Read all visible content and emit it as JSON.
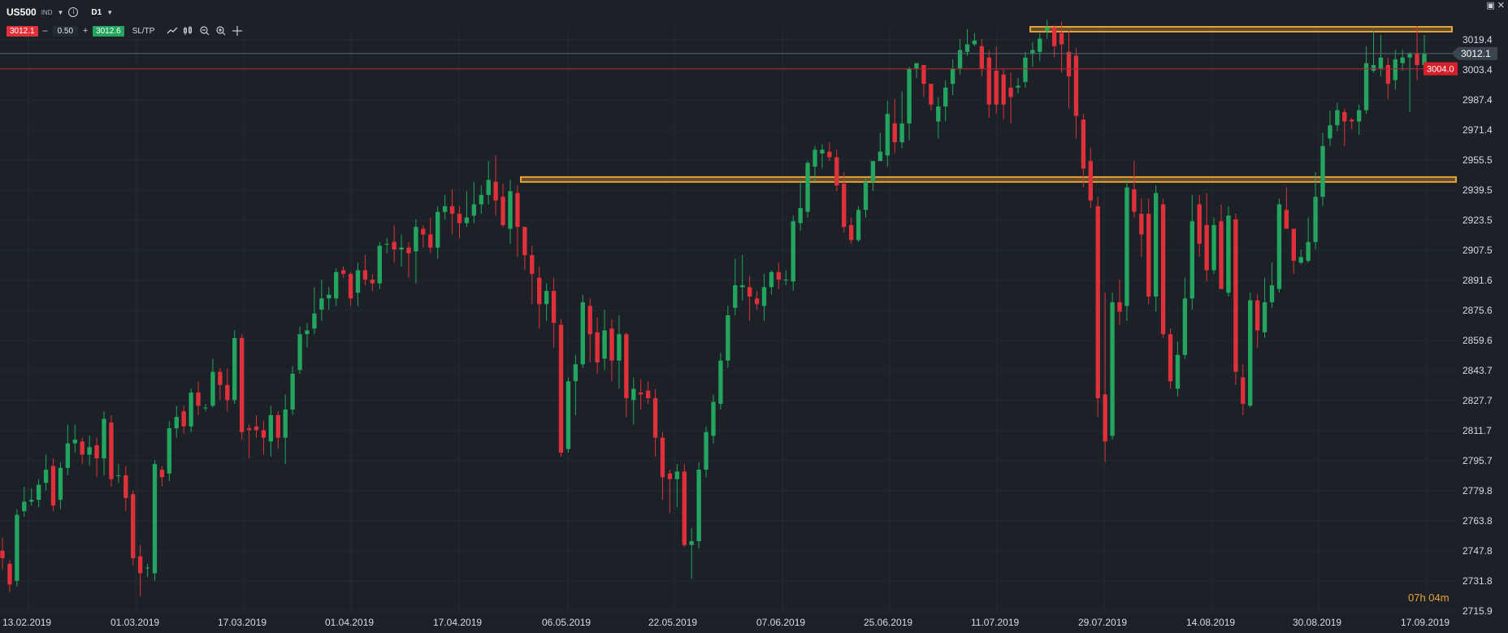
{
  "header": {
    "symbol": "US500",
    "symbol_tag": "IND",
    "timeframe": "D1",
    "sell_price": "3012.1",
    "lot_size": "0.50",
    "buy_price": "3012.6",
    "sltp_label": "SL/TP",
    "minus": "–",
    "plus": "+",
    "info": "i",
    "caret": "▼"
  },
  "window_controls": {
    "restore": "▣",
    "close": "✕"
  },
  "timer": "07h 04m",
  "chart_data": {
    "type": "candlestick",
    "ylim": [
      2715.9,
      3027.0
    ],
    "y_ticks": [
      "3019.4",
      "3003.4",
      "2987.4",
      "2971.4",
      "2955.5",
      "2939.5",
      "2923.5",
      "2907.5",
      "2891.6",
      "2875.6",
      "2859.6",
      "2843.7",
      "2827.7",
      "2811.7",
      "2795.7",
      "2779.8",
      "2763.8",
      "2747.8",
      "2731.8",
      "2715.9"
    ],
    "x_ticks": [
      "13.02.2019",
      "01.03.2019",
      "17.03.2019",
      "01.04.2019",
      "17.04.2019",
      "06.05.2019",
      "22.05.2019",
      "07.06.2019",
      "25.06.2019",
      "11.07.2019",
      "29.07.2019",
      "14.08.2019",
      "30.08.2019",
      "17.09.2019"
    ],
    "current_price": "3012.1",
    "marked_price": "3004.0",
    "resistance_levels": [
      3025.0,
      2945.2
    ],
    "colors": {
      "background": "#1b2127",
      "up": "#23a55f",
      "down": "#e0303a",
      "level": "#e8a23a",
      "grid": "#232b32",
      "text": "#d5dbe0"
    },
    "candles": [
      [
        2748,
        2744,
        2755,
        2738
      ],
      [
        2741,
        2730,
        2743,
        2726
      ],
      [
        2732,
        2767,
        2770,
        2729
      ],
      [
        2769,
        2774,
        2782,
        2766
      ],
      [
        2774,
        2775,
        2781,
        2772
      ],
      [
        2775,
        2783,
        2786,
        2771
      ],
      [
        2784,
        2791,
        2799,
        2780
      ],
      [
        2793,
        2772,
        2797,
        2769
      ],
      [
        2775,
        2792,
        2795,
        2770
      ],
      [
        2792,
        2805,
        2815,
        2788
      ],
      [
        2805,
        2807,
        2815,
        2800
      ],
      [
        2806,
        2799,
        2808,
        2794
      ],
      [
        2799,
        2803,
        2809,
        2793
      ],
      [
        2804,
        2797,
        2808,
        2787
      ],
      [
        2797,
        2818,
        2822,
        2788
      ],
      [
        2816,
        2786,
        2820,
        2782
      ],
      [
        2788,
        2788,
        2794,
        2784
      ],
      [
        2788,
        2776,
        2793,
        2769
      ],
      [
        2778,
        2744,
        2780,
        2740
      ],
      [
        2745,
        2736,
        2751,
        2724
      ],
      [
        2739,
        2739,
        2741,
        2734
      ],
      [
        2736,
        2794,
        2796,
        2732
      ],
      [
        2791,
        2787,
        2793,
        2782
      ],
      [
        2789,
        2813,
        2817,
        2785
      ],
      [
        2813,
        2819,
        2825,
        2808
      ],
      [
        2822,
        2814,
        2825,
        2810
      ],
      [
        2814,
        2832,
        2834,
        2811
      ],
      [
        2832,
        2825,
        2838,
        2820
      ],
      [
        2824,
        2824,
        2826,
        2822
      ],
      [
        2825,
        2843,
        2850,
        2824
      ],
      [
        2843,
        2836,
        2845,
        2828
      ],
      [
        2836,
        2828,
        2845,
        2822
      ],
      [
        2828,
        2861,
        2865,
        2826
      ],
      [
        2861,
        2811,
        2863,
        2807
      ],
      [
        2813,
        2812,
        2815,
        2797
      ],
      [
        2814,
        2812,
        2820,
        2808
      ],
      [
        2812,
        2808,
        2817,
        2799
      ],
      [
        2806,
        2820,
        2825,
        2798
      ],
      [
        2820,
        2808,
        2822,
        2802
      ],
      [
        2808,
        2823,
        2831,
        2794
      ],
      [
        2823,
        2842,
        2846,
        2820
      ],
      [
        2844,
        2863,
        2867,
        2842
      ],
      [
        2863,
        2865,
        2869,
        2856
      ],
      [
        2866,
        2874,
        2888,
        2863
      ],
      [
        2876,
        2882,
        2892,
        2870
      ],
      [
        2882,
        2884,
        2888,
        2876
      ],
      [
        2882,
        2896,
        2898,
        2878
      ],
      [
        2897,
        2895,
        2899,
        2893
      ],
      [
        2895,
        2882,
        2896,
        2878
      ],
      [
        2885,
        2897,
        2901,
        2878
      ],
      [
        2897,
        2892,
        2905,
        2889
      ],
      [
        2892,
        2890,
        2895,
        2886
      ],
      [
        2890,
        2910,
        2912,
        2887
      ],
      [
        2911,
        2911,
        2914,
        2906
      ],
      [
        2912,
        2908,
        2921,
        2901
      ],
      [
        2908,
        2909,
        2916,
        2899
      ],
      [
        2909,
        2906,
        2912,
        2893
      ],
      [
        2907,
        2920,
        2924,
        2890
      ],
      [
        2919,
        2916,
        2921,
        2909
      ],
      [
        2916,
        2909,
        2925,
        2906
      ],
      [
        2909,
        2928,
        2931,
        2903
      ],
      [
        2928,
        2931,
        2937,
        2924
      ],
      [
        2931,
        2927,
        2940,
        2916
      ],
      [
        2927,
        2922,
        2931,
        2914
      ],
      [
        2922,
        2925,
        2939,
        2920
      ],
      [
        2926,
        2932,
        2944,
        2922
      ],
      [
        2932,
        2937,
        2942,
        2927
      ],
      [
        2937,
        2945,
        2955,
        2932
      ],
      [
        2944,
        2934,
        2958,
        2926
      ],
      [
        2936,
        2921,
        2943,
        2920
      ],
      [
        2919,
        2939,
        2945,
        2911
      ],
      [
        2938,
        2920,
        2942,
        2904
      ],
      [
        2920,
        2905,
        2920,
        2897
      ],
      [
        2905,
        2895,
        2910,
        2879
      ],
      [
        2893,
        2879,
        2899,
        2866
      ],
      [
        2879,
        2886,
        2890,
        2870
      ],
      [
        2886,
        2869,
        2893,
        2856
      ],
      [
        2868,
        2800,
        2871,
        2798
      ],
      [
        2802,
        2838,
        2840,
        2800
      ],
      [
        2838,
        2847,
        2852,
        2820
      ],
      [
        2847,
        2880,
        2884,
        2845
      ],
      [
        2878,
        2863,
        2882,
        2848
      ],
      [
        2864,
        2848,
        2872,
        2842
      ],
      [
        2850,
        2865,
        2876,
        2844
      ],
      [
        2866,
        2849,
        2871,
        2838
      ],
      [
        2849,
        2863,
        2873,
        2834
      ],
      [
        2863,
        2829,
        2864,
        2819
      ],
      [
        2828,
        2834,
        2840,
        2815
      ],
      [
        2832,
        2831,
        2839,
        2823
      ],
      [
        2833,
        2829,
        2838,
        2826
      ],
      [
        2829,
        2808,
        2834,
        2798
      ],
      [
        2808,
        2787,
        2811,
        2775
      ],
      [
        2789,
        2786,
        2791,
        2768
      ],
      [
        2786,
        2790,
        2794,
        2771
      ],
      [
        2790,
        2751,
        2794,
        2750
      ],
      [
        2751,
        2753,
        2760,
        2733
      ],
      [
        2753,
        2791,
        2795,
        2749
      ],
      [
        2791,
        2811,
        2814,
        2787
      ],
      [
        2809,
        2827,
        2831,
        2805
      ],
      [
        2826,
        2849,
        2853,
        2823
      ],
      [
        2849,
        2873,
        2878,
        2845
      ],
      [
        2877,
        2889,
        2903,
        2873
      ],
      [
        2888,
        2889,
        2905,
        2881
      ],
      [
        2888,
        2883,
        2894,
        2870
      ],
      [
        2882,
        2879,
        2886,
        2876
      ],
      [
        2878,
        2888,
        2895,
        2870
      ],
      [
        2888,
        2896,
        2897,
        2884
      ],
      [
        2896,
        2892,
        2901,
        2887
      ],
      [
        2892,
        2892,
        2897,
        2889
      ],
      [
        2891,
        2923,
        2926,
        2886
      ],
      [
        2922,
        2930,
        2944,
        2918
      ],
      [
        2928,
        2954,
        2955,
        2925
      ],
      [
        2952,
        2961,
        2963,
        2944
      ],
      [
        2959,
        2961,
        2964,
        2951
      ],
      [
        2960,
        2957,
        2965,
        2955
      ],
      [
        2957,
        2942,
        2961,
        2939
      ],
      [
        2943,
        2920,
        2949,
        2917
      ],
      [
        2921,
        2913,
        2925,
        2911
      ],
      [
        2913,
        2929,
        2931,
        2912
      ],
      [
        2929,
        2944,
        2946,
        2925
      ],
      [
        2944,
        2955,
        2955,
        2939
      ],
      [
        2955,
        2960,
        2970,
        2955
      ],
      [
        2958,
        2980,
        2987,
        2952
      ],
      [
        2975,
        2965,
        2988,
        2959
      ],
      [
        2965,
        2975,
        2992,
        2962
      ],
      [
        2975,
        3004,
        3005,
        2966
      ],
      [
        3004,
        3007,
        3006,
        2999
      ],
      [
        3006,
        2996,
        3005,
        2989
      ],
      [
        2996,
        2985,
        2989,
        2982
      ],
      [
        2976,
        2984,
        2989,
        2967
      ],
      [
        2984,
        2994,
        2998,
        2976
      ],
      [
        2996,
        3004,
        3009,
        2990
      ],
      [
        3004,
        3014,
        3020,
        3001
      ],
      [
        3013,
        3017,
        3025,
        3011
      ],
      [
        3017,
        3019,
        3023,
        3016
      ],
      [
        3016,
        3004,
        3020,
        3000
      ],
      [
        3010,
        2985,
        3014,
        2978
      ],
      [
        3003,
        2985,
        3016,
        2980
      ],
      [
        3001,
        2985,
        3004,
        2977
      ],
      [
        2994,
        2989,
        3002,
        2975
      ],
      [
        2994,
        2995,
        2999,
        2991
      ],
      [
        2997,
        3010,
        3013,
        2994
      ],
      [
        3012,
        3014,
        3018,
        3005
      ],
      [
        3013,
        3020,
        3023,
        3008
      ],
      [
        3024,
        3026,
        3030,
        3020
      ],
      [
        3026,
        3016,
        3027,
        3010
      ],
      [
        3023,
        3017,
        3029,
        3002
      ],
      [
        3013,
        3000,
        3024,
        2983
      ],
      [
        3011,
        2979,
        3015,
        2967
      ],
      [
        2977,
        2951,
        2980,
        2941
      ],
      [
        2955,
        2934,
        2962,
        2930
      ],
      [
        2931,
        2829,
        2936,
        2819
      ],
      [
        2831,
        2806,
        2885,
        2795
      ],
      [
        2809,
        2880,
        2885,
        2807
      ],
      [
        2880,
        2875,
        2892,
        2868
      ],
      [
        2878,
        2941,
        2945,
        2870
      ],
      [
        2940,
        2928,
        2955,
        2925
      ],
      [
        2927,
        2916,
        2935,
        2904
      ],
      [
        2927,
        2883,
        2935,
        2879
      ],
      [
        2883,
        2938,
        2942,
        2875
      ],
      [
        2932,
        2863,
        2935,
        2861
      ],
      [
        2863,
        2838,
        2866,
        2834
      ],
      [
        2834,
        2852,
        2859,
        2830
      ],
      [
        2852,
        2882,
        2893,
        2850
      ],
      [
        2882,
        2923,
        2937,
        2876
      ],
      [
        2932,
        2911,
        2937,
        2904
      ],
      [
        2921,
        2897,
        2938,
        2891
      ],
      [
        2897,
        2921,
        2925,
        2895
      ],
      [
        2923,
        2887,
        2932,
        2887
      ],
      [
        2885,
        2926,
        2931,
        2883
      ],
      [
        2924,
        2843,
        2927,
        2836
      ],
      [
        2840,
        2826,
        2847,
        2820
      ],
      [
        2825,
        2881,
        2885,
        2824
      ],
      [
        2881,
        2865,
        2884,
        2856
      ],
      [
        2864,
        2880,
        2893,
        2861
      ],
      [
        2880,
        2889,
        2901,
        2877
      ],
      [
        2887,
        2932,
        2935,
        2885
      ],
      [
        2929,
        2919,
        2941,
        2922
      ],
      [
        2919,
        2902,
        2908,
        2895
      ],
      [
        2901,
        2904,
        2908,
        2900
      ],
      [
        2902,
        2912,
        2925,
        2901
      ],
      [
        2912,
        2936,
        2949,
        2908
      ],
      [
        2936,
        2963,
        2970,
        2931
      ],
      [
        2967,
        2974,
        2982,
        2963
      ],
      [
        2974,
        2982,
        2986,
        2971
      ],
      [
        2981,
        2976,
        2983,
        2963
      ],
      [
        2977,
        2976,
        2978,
        2972
      ],
      [
        2976,
        2982,
        2985,
        2969
      ],
      [
        2982,
        3007,
        3016,
        2980
      ],
      [
        3003,
        3006,
        3024,
        3002
      ],
      [
        3004,
        3010,
        3022,
        3000
      ],
      [
        3006,
        2996,
        3010,
        2988
      ],
      [
        2998,
        3009,
        3014,
        2993
      ],
      [
        3007,
        3010,
        3014,
        3003
      ],
      [
        3010,
        3012,
        3013,
        2981
      ],
      [
        3012,
        3006,
        3027,
        2998
      ],
      [
        3006,
        3012,
        3022,
        3007
      ]
    ]
  }
}
